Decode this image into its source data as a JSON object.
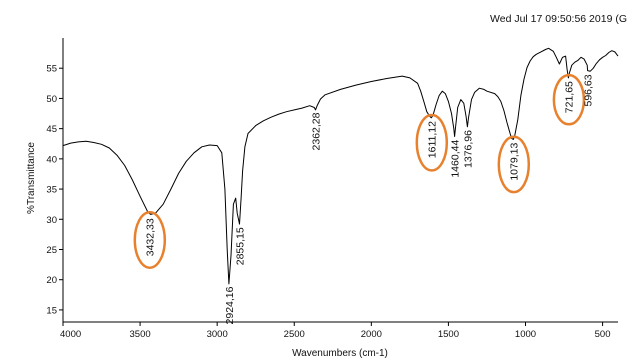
{
  "chart_data": {
    "type": "line",
    "timestamp": "Wed Jul 17 09:50:56 2019 (G",
    "xlabel": "Wavenumbers (cm-1)",
    "ylabel": "%Transmittance",
    "xlim": [
      4000,
      400
    ],
    "ylim": [
      13,
      60
    ],
    "x_ticks": [
      4000,
      3500,
      3000,
      2500,
      2000,
      1500,
      1000,
      500
    ],
    "y_ticks": [
      15,
      20,
      25,
      30,
      35,
      40,
      45,
      50,
      55
    ],
    "line_color": "#000000",
    "highlight_color": "#E8812E",
    "grid": false,
    "series": [
      {
        "x": [
          4000,
          3950,
          3900,
          3850,
          3800,
          3750,
          3700,
          3650,
          3600,
          3550,
          3500,
          3450,
          3432,
          3400,
          3350,
          3300,
          3250,
          3200,
          3150,
          3100,
          3050,
          3000,
          2970,
          2950,
          2935,
          2924,
          2910,
          2895,
          2880,
          2870,
          2855,
          2845,
          2835,
          2820,
          2800,
          2750,
          2700,
          2650,
          2600,
          2550,
          2500,
          2450,
          2400,
          2370,
          2362,
          2350,
          2330,
          2300,
          2200,
          2100,
          2000,
          1900,
          1800,
          1750,
          1700,
          1680,
          1660,
          1640,
          1620,
          1611,
          1600,
          1580,
          1560,
          1540,
          1520,
          1500,
          1480,
          1465,
          1460,
          1455,
          1440,
          1420,
          1400,
          1385,
          1377,
          1370,
          1350,
          1330,
          1300,
          1270,
          1250,
          1200,
          1180,
          1160,
          1140,
          1120,
          1100,
          1090,
          1079,
          1070,
          1050,
          1030,
          1010,
          990,
          970,
          950,
          930,
          900,
          870,
          850,
          820,
          800,
          780,
          760,
          740,
          730,
          722,
          715,
          700,
          680,
          660,
          640,
          620,
          600,
          597,
          580,
          560,
          540,
          520,
          500,
          480,
          460,
          440,
          420,
          400
        ],
        "y": [
          42.2,
          42.6,
          42.8,
          42.9,
          42.7,
          42.4,
          41.8,
          40.6,
          38.9,
          36.5,
          33.8,
          31.2,
          30.8,
          31.0,
          32.5,
          35.0,
          37.6,
          39.6,
          41.0,
          42.0,
          42.3,
          42.2,
          41.0,
          35.0,
          25.0,
          19.3,
          24.0,
          32.5,
          33.5,
          31.0,
          29.2,
          33.5,
          38.0,
          42.0,
          44.2,
          45.5,
          46.3,
          46.9,
          47.4,
          47.8,
          48.1,
          48.4,
          48.8,
          48.5,
          48.1,
          48.9,
          49.9,
          50.6,
          51.5,
          52.2,
          52.8,
          53.3,
          53.7,
          53.4,
          52.5,
          51.2,
          49.5,
          47.8,
          47.0,
          46.8,
          47.2,
          49.0,
          50.5,
          51.2,
          50.8,
          49.5,
          47.5,
          45.0,
          43.7,
          45.0,
          48.5,
          49.8,
          49.2,
          47.0,
          45.3,
          46.8,
          49.8,
          51.0,
          51.7,
          51.5,
          51.2,
          50.8,
          50.3,
          49.5,
          48.0,
          46.0,
          44.2,
          43.4,
          43.2,
          43.8,
          46.5,
          50.5,
          53.2,
          55.1,
          56.2,
          56.9,
          57.3,
          57.7,
          58.1,
          58.3,
          57.8,
          56.8,
          55.7,
          56.8,
          57.0,
          54.8,
          53.4,
          54.2,
          55.5,
          56.0,
          56.3,
          56.8,
          56.5,
          55.5,
          54.6,
          54.5,
          55.0,
          55.8,
          56.4,
          56.8,
          57.1,
          57.6,
          57.9,
          57.7,
          57.0
        ]
      }
    ],
    "annotations": [
      {
        "text": "3432,33",
        "x": 3440,
        "y": 30.5,
        "circled": true
      },
      {
        "text": "2924,16",
        "x": 2924,
        "y": 19.2,
        "circled": false
      },
      {
        "text": "2855,15",
        "x": 2855,
        "y": 29.0,
        "circled": false
      },
      {
        "text": "2362,28",
        "x": 2362,
        "y": 48.0,
        "circled": false
      },
      {
        "text": "1611,12",
        "x": 1611,
        "y": 46.6,
        "circled": true
      },
      {
        "text": "1460,44",
        "x": 1460,
        "y": 43.5,
        "circled": false
      },
      {
        "text": "1376,96",
        "x": 1377,
        "y": 45.1,
        "circled": false
      },
      {
        "text": "1079,13",
        "x": 1079,
        "y": 43.0,
        "circled": true
      },
      {
        "text": "721,65",
        "x": 722,
        "y": 53.2,
        "circled": true
      },
      {
        "text": "596,63",
        "x": 597,
        "y": 54.3,
        "circled": false
      }
    ]
  }
}
